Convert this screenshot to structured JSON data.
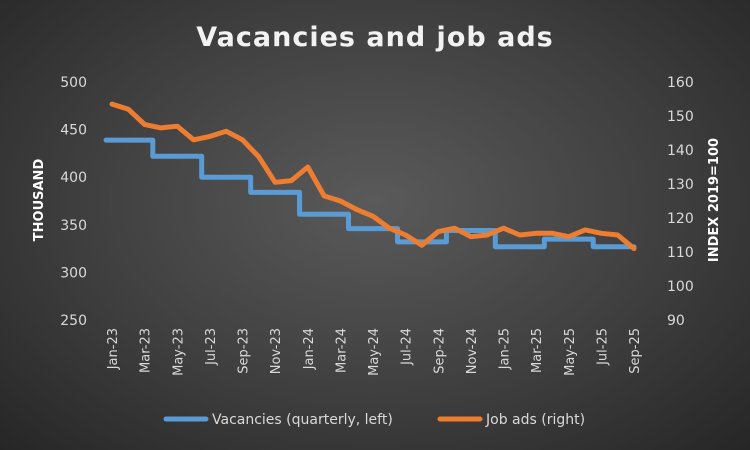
{
  "chart_data": {
    "type": "line",
    "title": "Vacancies and job ads",
    "ylabel_left": "THOUSAND",
    "ylabel_right": "INDEX 2019=100",
    "ylim_left": [
      250,
      500
    ],
    "ylim_right": [
      90,
      160
    ],
    "yticks_left": [
      250,
      300,
      350,
      400,
      450,
      500
    ],
    "yticks_right": [
      90,
      100,
      110,
      120,
      130,
      140,
      150,
      160
    ],
    "grid": false,
    "legend_position": "bottom",
    "x_start": "Jan-23",
    "months": [
      "Jan-23",
      "Feb-23",
      "Mar-23",
      "Apr-23",
      "May-23",
      "Jun-23",
      "Jul-23",
      "Aug-23",
      "Sep-23",
      "Oct-23",
      "Nov-23",
      "Dec-23",
      "Jan-24",
      "Feb-24",
      "Mar-24",
      "Apr-24",
      "May-24",
      "Jun-24",
      "Jul-24",
      "Aug-24",
      "Sep-24",
      "Oct-24",
      "Nov-24",
      "Dec-24",
      "Jan-25",
      "Feb-25",
      "Mar-25",
      "Apr-25",
      "May-25",
      "Jun-25",
      "Jul-25",
      "Aug-25",
      "Sep-25"
    ],
    "x_tick_labels": [
      "Jan-23",
      "Mar-23",
      "May-23",
      "Jul-23",
      "Sep-23",
      "Nov-23",
      "Jan-24",
      "Mar-24",
      "May-24",
      "Jul-24",
      "Sep-24",
      "Nov-24",
      "Jan-25",
      "Mar-25",
      "May-25",
      "Jul-25",
      "Sep-25"
    ],
    "series": [
      {
        "name": "Vacancies (quarterly, left)",
        "axis": "left",
        "color": "#5b9bd5",
        "step": true,
        "values": [
          439,
          439,
          439,
          422,
          422,
          422,
          400,
          400,
          400,
          384,
          384,
          384,
          361,
          361,
          361,
          346,
          346,
          346,
          332,
          332,
          332,
          344,
          344,
          344,
          327,
          327,
          327,
          335,
          335,
          335,
          327,
          327,
          327
        ]
      },
      {
        "name": "Job ads (right)",
        "axis": "right",
        "color": "#ed7d31",
        "step": false,
        "values": [
          153.5,
          152,
          147.5,
          146.5,
          147,
          143,
          144,
          145.5,
          143,
          138,
          130.5,
          131,
          135,
          126.5,
          125,
          122.5,
          120.5,
          117,
          115,
          112,
          116,
          117,
          114.5,
          115,
          117,
          115,
          115.5,
          115.5,
          114.5,
          116.5,
          115.5,
          115,
          111
        ]
      }
    ]
  }
}
